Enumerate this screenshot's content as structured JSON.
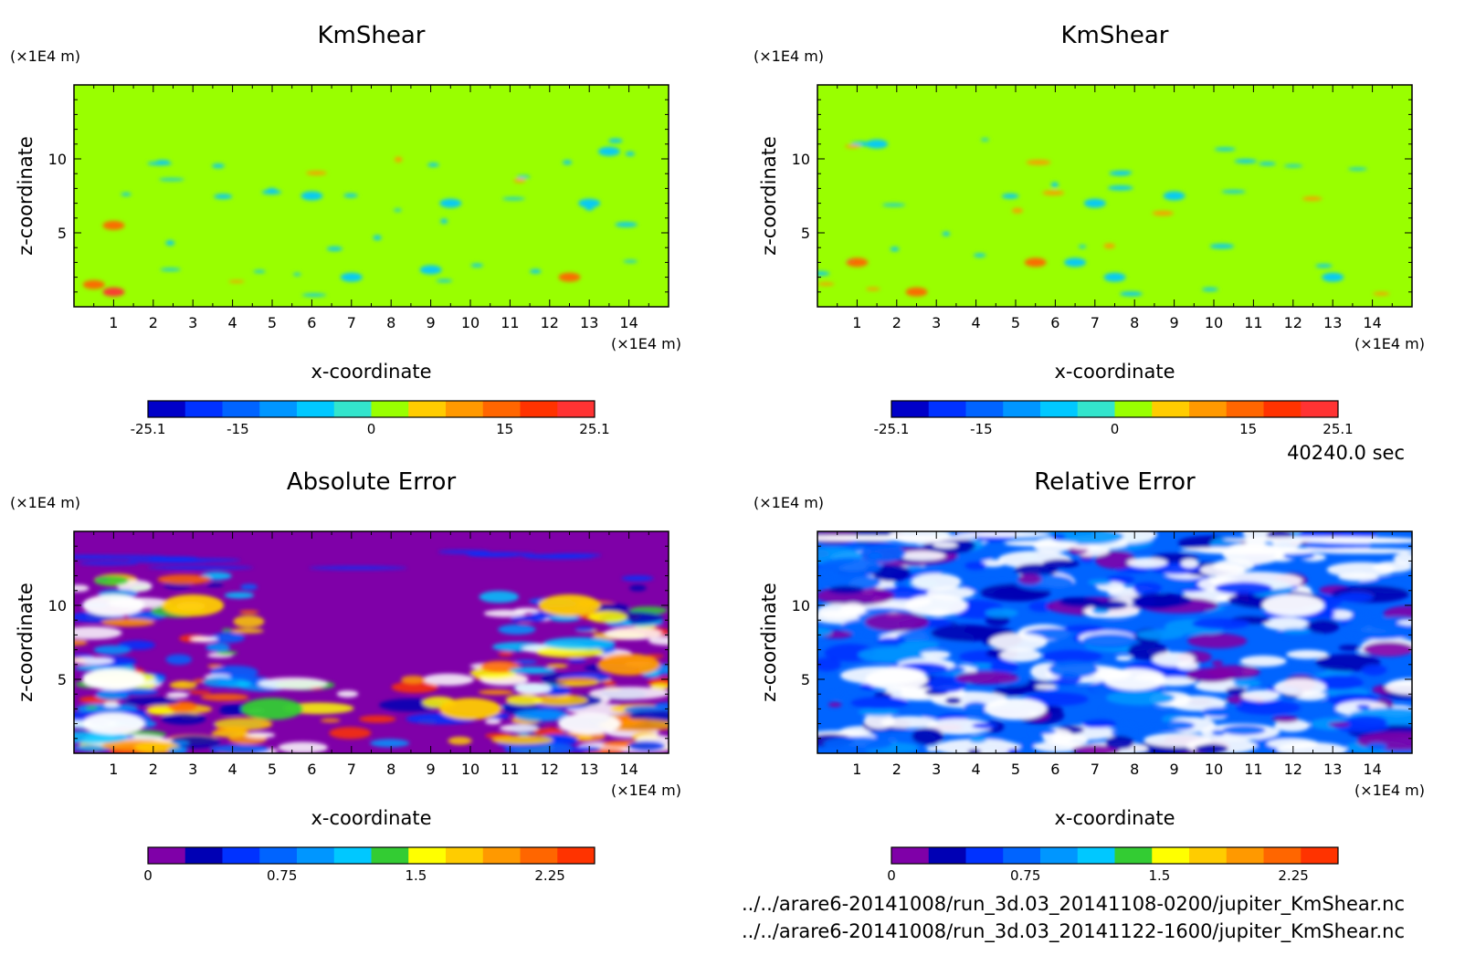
{
  "time_label": "40240.0 sec",
  "footer": {
    "file1": "../../arare6-20141008/run_3d.03_20141108-0200/jupiter_KmShear.nc",
    "file2": "../../arare6-20141008/run_3d.03_20141122-1600/jupiter_KmShear.nc"
  },
  "colors": {
    "kmshear_levels": [
      "#0000c8",
      "#0032ff",
      "#0064ff",
      "#0096ff",
      "#00c8ff",
      "#33e5cc",
      "#99ff00",
      "#ffcc00",
      "#ff9900",
      "#ff6600",
      "#ff3300",
      "#ff3333"
    ],
    "error_levels": [
      "#7f00a8",
      "#0000b4",
      "#0032ff",
      "#0064ff",
      "#0096ff",
      "#00c8ff",
      "#33cc33",
      "#ffff00",
      "#ffcc00",
      "#ff9900",
      "#ff6600",
      "#ff3300"
    ],
    "kmshear_background": "#99ff00",
    "abs_error_background": "#7f00a8",
    "rel_error_background": "#0064ff"
  },
  "chart_data": [
    {
      "type": "heatmap",
      "title": "KmShear",
      "xlabel": "x-coordinate",
      "ylabel": "z-coordinate",
      "x_unit": "(×1E4 m)",
      "y_unit": "(×1E4 m)",
      "xlim": [
        0,
        15
      ],
      "ylim": [
        0,
        15
      ],
      "x_ticks": [
        "1",
        "2",
        "3",
        "4",
        "5",
        "6",
        "7",
        "8",
        "9",
        "10",
        "11",
        "12",
        "13",
        "14"
      ],
      "y_ticks": [
        "5",
        "10"
      ],
      "colorbar": {
        "min": -25.1,
        "max": 25.1,
        "labels": [
          "-25.1",
          "-15",
          "0",
          "15",
          "25.1"
        ]
      },
      "features": [
        {
          "x": 1.0,
          "z": 1.0,
          "level": 11
        },
        {
          "x": 0.5,
          "z": 1.5,
          "level": 9
        },
        {
          "x": 1.0,
          "z": 5.5,
          "level": 9
        },
        {
          "x": 6.0,
          "z": 7.5,
          "level": 4
        },
        {
          "x": 9.5,
          "z": 7.0,
          "level": 4
        },
        {
          "x": 9.0,
          "z": 2.5,
          "level": 4
        },
        {
          "x": 7.0,
          "z": 2.0,
          "level": 4
        },
        {
          "x": 13.5,
          "z": 10.5,
          "level": 4
        },
        {
          "x": 13.0,
          "z": 7.0,
          "level": 4
        },
        {
          "x": 12.5,
          "z": 2.0,
          "level": 9
        }
      ]
    },
    {
      "type": "heatmap",
      "title": "KmShear",
      "xlabel": "x-coordinate",
      "ylabel": "z-coordinate",
      "x_unit": "(×1E4 m)",
      "y_unit": "(×1E4 m)",
      "xlim": [
        0,
        15
      ],
      "ylim": [
        0,
        15
      ],
      "x_ticks": [
        "1",
        "2",
        "3",
        "4",
        "5",
        "6",
        "7",
        "8",
        "9",
        "10",
        "11",
        "12",
        "13",
        "14"
      ],
      "y_ticks": [
        "5",
        "10"
      ],
      "colorbar": {
        "min": -25.1,
        "max": 25.1,
        "labels": [
          "-25.1",
          "-15",
          "0",
          "15",
          "25.1"
        ]
      },
      "features": [
        {
          "x": 1.5,
          "z": 11.0,
          "level": 4
        },
        {
          "x": 7.0,
          "z": 7.0,
          "level": 4
        },
        {
          "x": 9.0,
          "z": 7.5,
          "level": 4
        },
        {
          "x": 6.5,
          "z": 3.0,
          "level": 4
        },
        {
          "x": 2.5,
          "z": 1.0,
          "level": 9
        },
        {
          "x": 1.0,
          "z": 3.0,
          "level": 9
        },
        {
          "x": 5.5,
          "z": 3.0,
          "level": 9
        },
        {
          "x": 7.5,
          "z": 2.0,
          "level": 4
        },
        {
          "x": 13.0,
          "z": 2.0,
          "level": 4
        }
      ]
    },
    {
      "type": "heatmap",
      "title": "Absolute Error",
      "xlabel": "x-coordinate",
      "ylabel": "z-coordinate",
      "x_unit": "(×1E4 m)",
      "y_unit": "(×1E4 m)",
      "xlim": [
        0,
        15
      ],
      "ylim": [
        0,
        15
      ],
      "x_ticks": [
        "1",
        "2",
        "3",
        "4",
        "5",
        "6",
        "7",
        "8",
        "9",
        "10",
        "11",
        "12",
        "13",
        "14"
      ],
      "y_ticks": [
        "5",
        "10"
      ],
      "colorbar": {
        "min": 0,
        "max": 2.5,
        "labels": [
          "0",
          "0.75",
          "1.5",
          "2.25"
        ]
      },
      "features": [
        {
          "x": 1.0,
          "z": 10.0,
          "level": 12
        },
        {
          "x": 3.0,
          "z": 10.0,
          "level": 8
        },
        {
          "x": 1.0,
          "z": 5.0,
          "level": 12
        },
        {
          "x": 1.0,
          "z": 2.0,
          "level": 12
        },
        {
          "x": 5.0,
          "z": 3.0,
          "level": 6
        },
        {
          "x": 12.5,
          "z": 10.0,
          "level": 8
        },
        {
          "x": 14.0,
          "z": 6.0,
          "level": 9
        },
        {
          "x": 13.0,
          "z": 2.0,
          "level": 12
        },
        {
          "x": 10.0,
          "z": 3.0,
          "level": 8
        }
      ]
    },
    {
      "type": "heatmap",
      "title": "Relative Error",
      "xlabel": "x-coordinate",
      "ylabel": "z-coordinate",
      "x_unit": "(×1E4 m)",
      "y_unit": "(×1E4 m)",
      "xlim": [
        0,
        15
      ],
      "ylim": [
        0,
        15
      ],
      "x_ticks": [
        "1",
        "2",
        "3",
        "4",
        "5",
        "6",
        "7",
        "8",
        "9",
        "10",
        "11",
        "12",
        "13",
        "14"
      ],
      "y_ticks": [
        "5",
        "10"
      ],
      "colorbar": {
        "min": 0,
        "max": 2.5,
        "labels": [
          "0",
          "0.75",
          "1.5",
          "2.25"
        ]
      },
      "features": [
        {
          "x": 3.0,
          "z": 10.0,
          "level": 12
        },
        {
          "x": 8.0,
          "z": 5.0,
          "level": 12
        },
        {
          "x": 11.0,
          "z": 13.5,
          "level": 12
        },
        {
          "x": 12.0,
          "z": 10.0,
          "level": 12
        },
        {
          "x": 5.0,
          "z": 3.0,
          "level": 12
        },
        {
          "x": 2.0,
          "z": 5.0,
          "level": 12
        }
      ]
    }
  ]
}
